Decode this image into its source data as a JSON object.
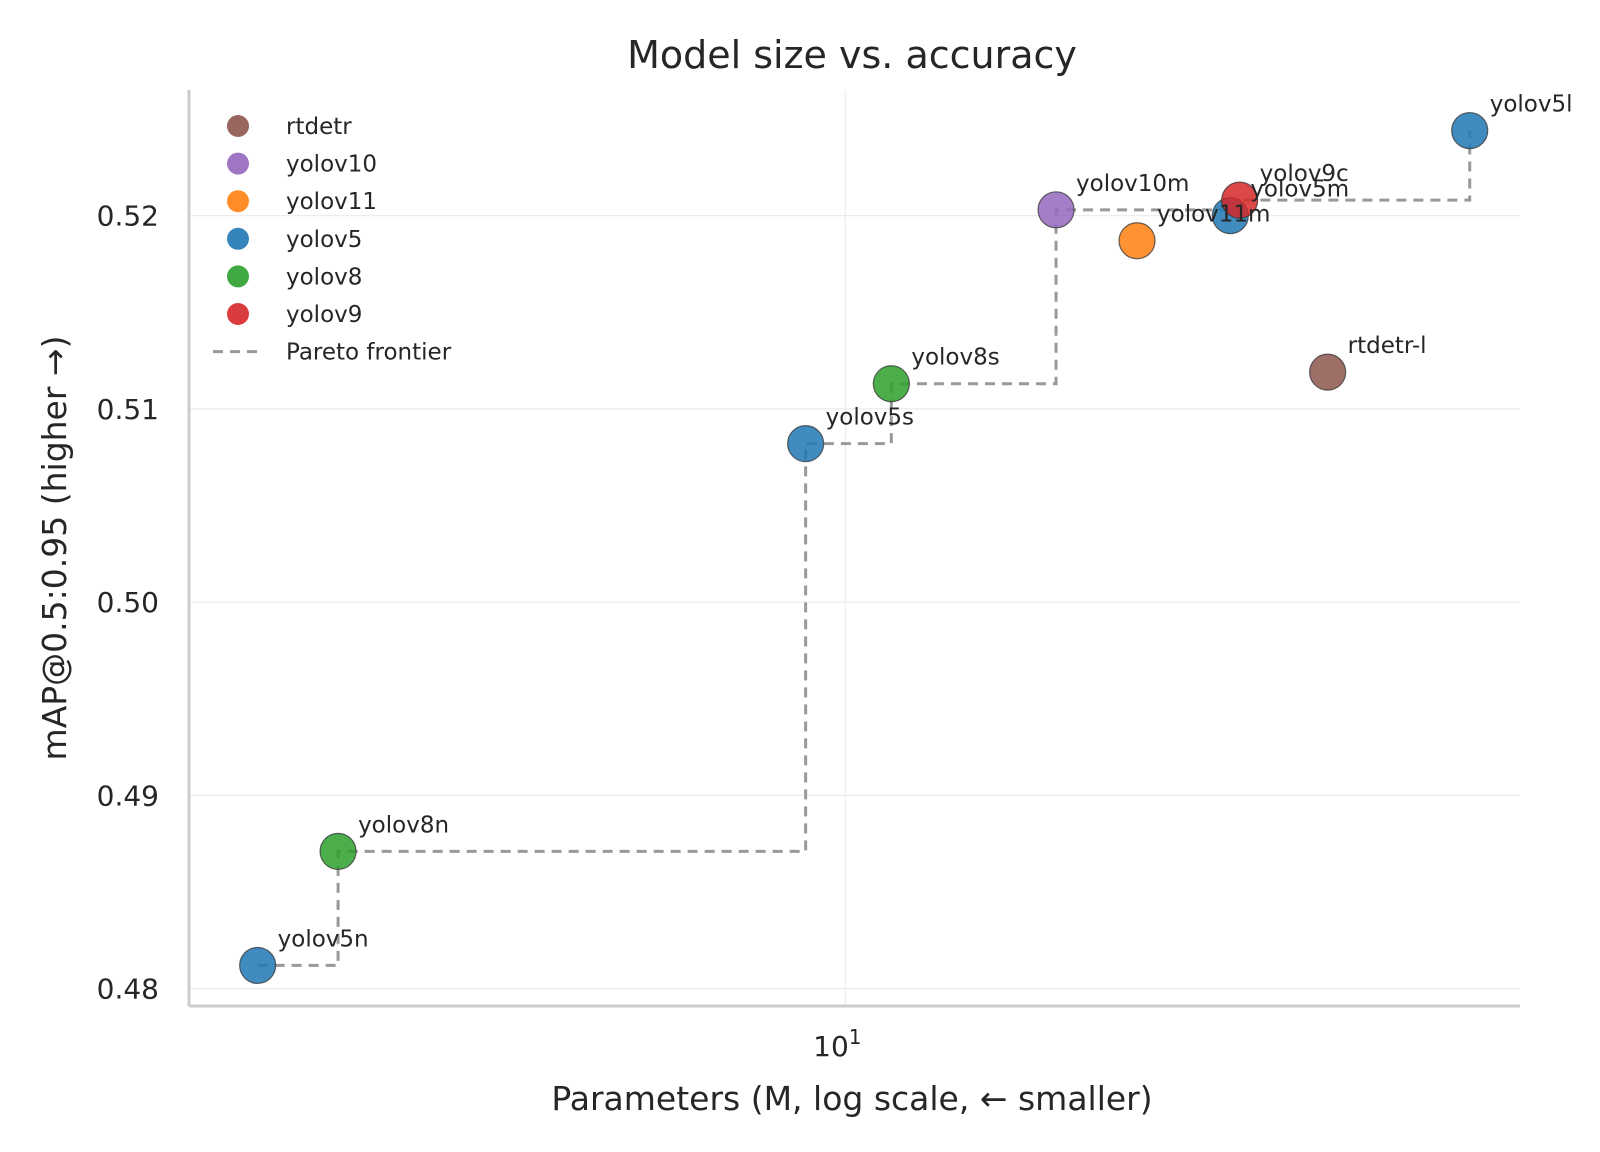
{
  "chart_data": {
    "type": "scatter",
    "title": "Model size vs. accuracy",
    "xlabel": "Parameters (M, log scale, ← smaller)",
    "ylabel": "mAP@0.5:0.95 (higher →)",
    "xscale": "log",
    "xlim": [
      1.75,
      60
    ],
    "ylim": [
      0.4791,
      0.5265
    ],
    "x_ticks": [
      {
        "value": 10,
        "base": "10",
        "exp": "1"
      }
    ],
    "y_ticks": [
      {
        "value": 0.48,
        "label": "0.48"
      },
      {
        "value": 0.49,
        "label": "0.49"
      },
      {
        "value": 0.5,
        "label": "0.50"
      },
      {
        "value": 0.51,
        "label": "0.51"
      },
      {
        "value": 0.52,
        "label": "0.52"
      }
    ],
    "grid": true,
    "legend_position": "top-left",
    "families": [
      {
        "name": "rtdetr",
        "color": "#8c564b"
      },
      {
        "name": "yolov10",
        "color": "#9467bd"
      },
      {
        "name": "yolov11",
        "color": "#ff7f0e"
      },
      {
        "name": "yolov5",
        "color": "#1f77b4"
      },
      {
        "name": "yolov8",
        "color": "#2ca02c"
      },
      {
        "name": "yolov9",
        "color": "#d62728"
      }
    ],
    "frontier_label": "Pareto frontier",
    "frontier_color": "#999999",
    "points": [
      {
        "label": "yolov5n",
        "family": "yolov5",
        "x": 2.1,
        "y": 0.4812
      },
      {
        "label": "yolov8n",
        "family": "yolov8",
        "x": 2.6,
        "y": 0.4871
      },
      {
        "label": "yolov5s",
        "family": "yolov5",
        "x": 9.0,
        "y": 0.5082
      },
      {
        "label": "yolov8s",
        "family": "yolov8",
        "x": 11.3,
        "y": 0.5113
      },
      {
        "label": "yolov10m",
        "family": "yolov10",
        "x": 17.5,
        "y": 0.5203
      },
      {
        "label": "yolov11m",
        "family": "yolov11",
        "x": 21.7,
        "y": 0.5187
      },
      {
        "label": "yolov5m",
        "family": "yolov5",
        "x": 27.8,
        "y": 0.52
      },
      {
        "label": "yolov9c",
        "family": "yolov9",
        "x": 28.5,
        "y": 0.5208
      },
      {
        "label": "rtdetr-l",
        "family": "rtdetr",
        "x": 36.0,
        "y": 0.5119
      },
      {
        "label": "yolov5l",
        "family": "yolov5",
        "x": 52.5,
        "y": 0.5244
      }
    ],
    "frontier": [
      {
        "x": 2.1,
        "y": 0.4812
      },
      {
        "x": 2.6,
        "y": 0.4871
      },
      {
        "x": 9.0,
        "y": 0.5082
      },
      {
        "x": 11.3,
        "y": 0.5113
      },
      {
        "x": 17.5,
        "y": 0.5203
      },
      {
        "x": 28.5,
        "y": 0.5208
      },
      {
        "x": 52.5,
        "y": 0.5244
      }
    ]
  }
}
